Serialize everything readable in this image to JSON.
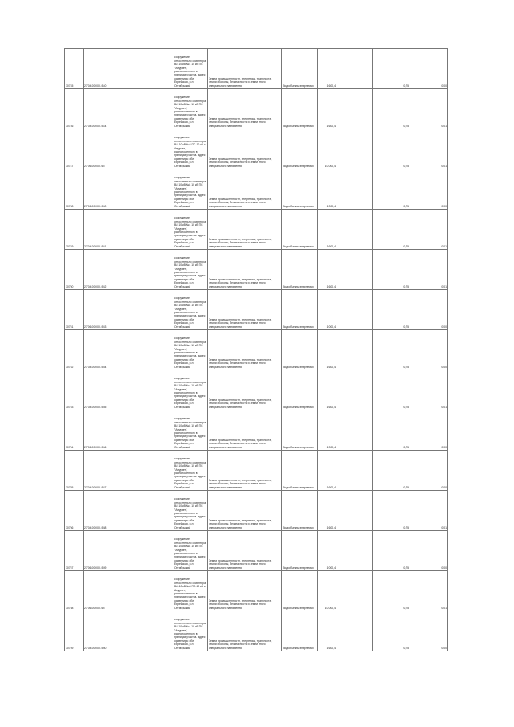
{
  "table": {
    "rows": [
      {
        "id": "30745",
        "cadastral": "27:04:000001:540",
        "location": "сооружение, относительно ориентира ВЛ 10 кВ №4 10 кВ ПС \"Амурзет\", расположенного в границах участка. адрес ориентира: обл. Еврейская, р-н Октябрьский",
        "category": "Земли промышленности, энергетики, транспорта, земли обороны, безопасности и земли иного специального назначения",
        "use": "Под объекты энергетики",
        "area": "1 600,4",
        "rate": "0,75",
        "tax": "0,00"
      },
      {
        "id": "30746",
        "cadastral": "27:04:000001:544",
        "location": "сооружение, относительно ориентира ВЛ 10 кВ №4 10 кВ ПС \"Амурзет\", расположенного в границах участка. адрес ориентира: обл. Еврейская, р-н Октябрьский",
        "category": "Земли промышленности, энергетики, транспорта, земли обороны, безопасности и земли иного специального назначения",
        "use": "Под объекты энергетики",
        "area": "1 600,4",
        "rate": "0,75",
        "tax": "0,01"
      },
      {
        "id": "30747",
        "cadastral": "27:06:000001:65",
        "location": "сооружение, относительно ориентира ВЛ-10 кВ №8 ПС-10 кВ с. Амурзет, расположенного в границах участка. адрес ориентира: обл. Еврейская, р-н Октябрьский",
        "category": "Земли промышленности, энергетики, транспорта, земли обороны, безопасности и земли иного специального назначения",
        "use": "Под объекты энергетики",
        "area": "10 000,4",
        "rate": "0,75",
        "tax": "0,01"
      },
      {
        "id": "30748",
        "cadastral": "27:06:000001:550",
        "location": "сооружение, относительно ориентира ВЛ 10 кВ №8 10 кВ ПС \"Амурзет\", расположенного в границах участка. адрес ориентира: обл. Еврейская, р-н Октябрьский",
        "category": "Земли промышленности, энергетики, транспорта, земли обороны, безопасности и земли иного специального назначения",
        "use": "Под объекты энергетики",
        "area": "1 000,4",
        "rate": "0,75",
        "tax": "0,00"
      },
      {
        "id": "30749",
        "cadastral": "27:04:000001:551",
        "location": "сооружение, относительно ориентира ВЛ 10 кВ №4 10 кВ ПС \"Амурзет\", расположенного в границах участка. адрес ориентира: обл. Еврейская, р-н Октябрьский",
        "category": "Земли промышленности, энергетики, транспорта, земли обороны, безопасности и земли иного специального назначения",
        "use": "Под объекты энергетики",
        "area": "1 600,4",
        "rate": "0,75",
        "tax": "0,01"
      },
      {
        "id": "30750",
        "cadastral": "27:04:000001:552",
        "location": "сооружение, относительно ориентира ВЛ 10 кВ №4 10 кВ ПС \"Амурзет\", расположенного в границах участка. адрес ориентира: обл. Еврейская, р-н Октябрьский",
        "category": "Земли промышленности, энергетики, транспорта, земли обороны, безопасности и земли иного специального назначения",
        "use": "Под объекты энергетики",
        "area": "1 600,4",
        "rate": "0,75",
        "tax": "0,01"
      },
      {
        "id": "30751",
        "cadastral": "27:06:000001:553",
        "location": "сооружение, относительно ориентира ВЛ 10 кВ №8 10 кВ ПС \"Амурзет\", расположенного в границах участка. адрес ориентира: обл. Еврейская, р-н Октябрьский",
        "category": "Земли промышленности, энергетики, транспорта, земли обороны, безопасности и земли иного специального назначения",
        "use": "Под объекты энергетики",
        "area": "1 000,4",
        "rate": "0,75",
        "tax": "0,00"
      },
      {
        "id": "30752",
        "cadastral": "27:04:000001:554",
        "location": "сооружение, относительно ориентира ВЛ 10 кВ №4 10 кВ ПС \"Амурзет\", расположенного в границах участка. адрес ориентира: обл. Еврейская, р-н Октябрьский",
        "category": "Земли промышленности, энергетики, транспорта, земли обороны, безопасности и земли иного специального назначения",
        "use": "Под объекты энергетики",
        "area": "1 600,4",
        "rate": "0,75",
        "tax": "0,00"
      },
      {
        "id": "30753",
        "cadastral": "27:04:000001:555",
        "location": "сооружение, относительно ориентира ВЛ 10 кВ №4 10 кВ ПС \"Амурзет\", расположенного в границах участка. адрес ориентира: обл. Еврейская, р-н Октябрьский",
        "category": "Земли промышленности, энергетики, транспорта, земли обороны, безопасности и земли иного специального назначения",
        "use": "Под объекты энергетики",
        "area": "1 600,4",
        "rate": "0,75",
        "tax": "0,01"
      },
      {
        "id": "30754",
        "cadastral": "27:06:000001:556",
        "location": "сооружение, относительно ориентира ВЛ 10 кВ №8 10 кВ ПС \"Амурзет\", расположенного в границах участка. адрес ориентира: обл. Еврейская, р-н Октябрьский",
        "category": "Земли промышленности, энергетики, транспорта, земли обороны, безопасности и земли иного специального назначения",
        "use": "Под объекты энергетики",
        "area": "1 000,4",
        "rate": "0,75",
        "tax": "0,00"
      },
      {
        "id": "30755",
        "cadastral": "27:04:000001:557",
        "location": "сооружение, относительно ориентира ВЛ 10 кВ №4 10 кВ ПС \"Амурзет\", расположенного в границах участка. адрес ориентира: обл. Еврейская, р-н Октябрьский",
        "category": "Земли промышленности, энергетики, транспорта, земли обороны, безопасности и земли иного специального назначения",
        "use": "Под объекты энергетики",
        "area": "1 600,4",
        "rate": "0,75",
        "tax": "0,00"
      },
      {
        "id": "30756",
        "cadastral": "27:04:000001:558",
        "location": "сооружение, относительно ориентира ВЛ 10 кВ №4 10 кВ ПС \"Амурзет\", расположенного в границах участка. адрес ориентира: обл. Еврейская, р-н Октябрьский",
        "category": "Земли промышленности, энергетики, транспорта, земли обороны, безопасности и земли иного специального назначения",
        "use": "Под объекты энергетики",
        "area": "1 600,4",
        "rate": "0,75",
        "tax": "0,01"
      },
      {
        "id": "30757",
        "cadastral": "27:06:000001:559",
        "location": "сооружение, относительно ориентира ВЛ 10 кВ №8 10 кВ ПС \"Амурзет\", расположенного в границах участка. адрес ориентира: обл. Еврейская, р-н Октябрьский",
        "category": "Земли промышленности, энергетики, транспорта, земли обороны, безопасности и земли иного специального назначения",
        "use": "Под объекты энергетики",
        "area": "1 000,4",
        "rate": "0,75",
        "tax": "0,00"
      },
      {
        "id": "30758",
        "cadastral": "27:06:000001:66",
        "location": "сооружение, относительно ориентира ВЛ-10 кВ №8 ПС-10 кВ с. Амурзет, расположенного в границах участка. адрес ориентира: обл. Еврейская, р-н Октябрьский",
        "category": "Земли промышленности, энергетики, транспорта, земли обороны, безопасности и земли иного специального назначения",
        "use": "Под объекты энергетики",
        "area": "10 000,4",
        "rate": "0,75",
        "tax": "0,01"
      },
      {
        "id": "30759",
        "cadastral": "27:04:000001:560",
        "location": "сооружение, относительно ориентира ВЛ 10 кВ №4 10 кВ ПС \"Амурзет\", расположенного в границах участка. адрес ориентира: обл. Еврейская, р-н Октябрьский",
        "category": "Земли промышленности, энергетики, транспорта, земли обороны, безопасности и земли иного специального назначения",
        "use": "Под объекты энергетики",
        "area": "1 600,4",
        "rate": "0,75",
        "tax": "0,00"
      }
    ]
  }
}
